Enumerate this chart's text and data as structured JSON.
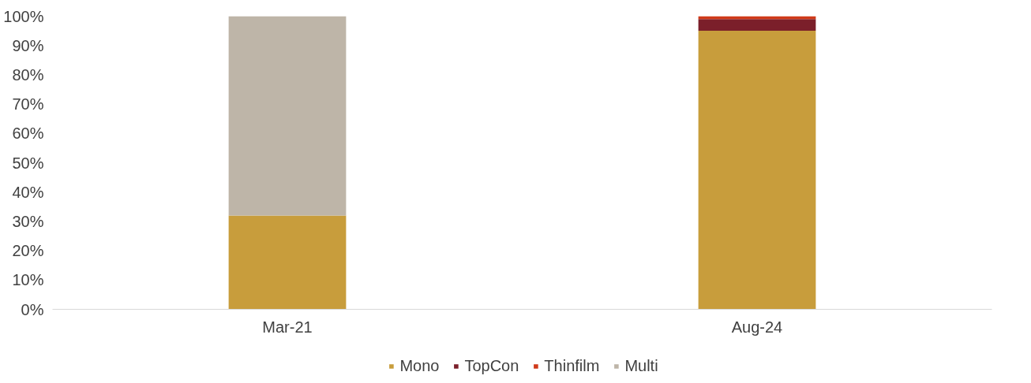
{
  "chart_data": {
    "type": "bar",
    "stacked": true,
    "categories": [
      "Mar-21",
      "Aug-24"
    ],
    "series": [
      {
        "name": "Mono",
        "color": "#c89d3c",
        "values": [
          32,
          95
        ]
      },
      {
        "name": "TopCon",
        "color": "#7b1f2a",
        "values": [
          0,
          4
        ]
      },
      {
        "name": "Thinfilm",
        "color": "#d03a1a",
        "values": [
          0,
          1
        ]
      },
      {
        "name": "Multi",
        "color": "#beb5a8",
        "values": [
          68,
          0
        ]
      }
    ],
    "ylim": [
      0,
      100
    ],
    "yticks": [
      {
        "value": 0,
        "label": "0%"
      },
      {
        "value": 10,
        "label": "10%"
      },
      {
        "value": 20,
        "label": "20%"
      },
      {
        "value": 30,
        "label": "30%"
      },
      {
        "value": 40,
        "label": "40%"
      },
      {
        "value": 50,
        "label": "50%"
      },
      {
        "value": 60,
        "label": "60%"
      },
      {
        "value": 70,
        "label": "70%"
      },
      {
        "value": 80,
        "label": "80%"
      },
      {
        "value": 90,
        "label": "90%"
      },
      {
        "value": 100,
        "label": "100%"
      }
    ],
    "grid": false,
    "legend": "bottom"
  }
}
